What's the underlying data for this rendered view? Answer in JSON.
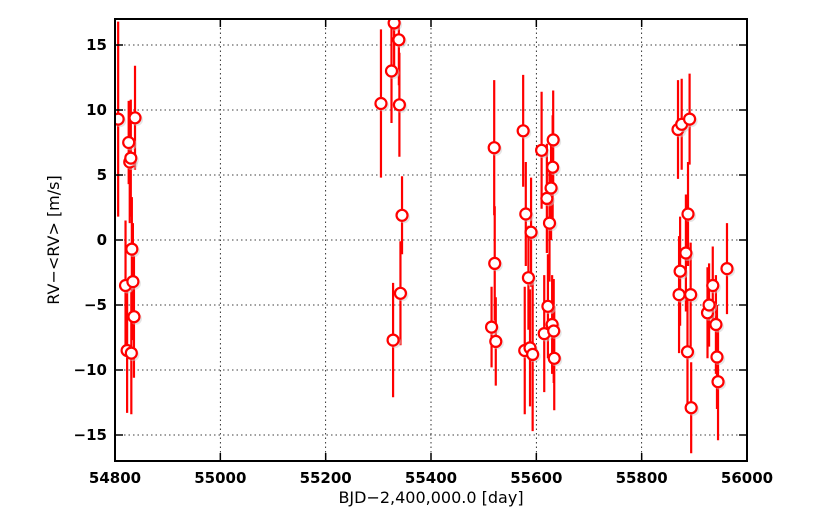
{
  "chart_data": {
    "type": "scatter",
    "xlabel": "BJD−2,400,000.0 [day]",
    "ylabel": "RV−<RV> [m/s]",
    "xlim": [
      54800,
      56000
    ],
    "ylim": [
      -17,
      17
    ],
    "xticks": [
      54800,
      55000,
      55200,
      55400,
      55600,
      55800,
      56000
    ],
    "yticks": [
      15,
      10,
      5,
      0,
      -5,
      -10,
      -15
    ],
    "xtick_labels": [
      "54800",
      "55000",
      "55200",
      "55400",
      "55600",
      "55800",
      "56000"
    ],
    "ytick_labels": [
      "15",
      "10",
      "5",
      "0",
      "−5",
      "−10",
      "−15"
    ],
    "grid": true,
    "marker_color": "#ff0000",
    "marker_face": "#ffffff",
    "series": [
      {
        "points": [
          {
            "x": 54806,
            "y": 9.3,
            "err": 7.5
          },
          {
            "x": 54820,
            "y": -3.5,
            "err": 5.0
          },
          {
            "x": 54823,
            "y": -8.5,
            "err": 4.8
          },
          {
            "x": 54826,
            "y": 7.5,
            "err": 3.2
          },
          {
            "x": 54828,
            "y": 6.0,
            "err": 4.7
          },
          {
            "x": 54830,
            "y": 6.3,
            "err": 4.5
          },
          {
            "x": 54831,
            "y": -8.7,
            "err": 4.7
          },
          {
            "x": 54832,
            "y": -0.7,
            "err": 4.0
          },
          {
            "x": 54834,
            "y": -3.2,
            "err": 4.5
          },
          {
            "x": 54836,
            "y": -5.9,
            "err": 4.7
          },
          {
            "x": 54838,
            "y": 9.4,
            "err": 4.0
          },
          {
            "x": 55305,
            "y": 10.5,
            "err": 5.7
          },
          {
            "x": 55325,
            "y": 13.0,
            "err": 4.0
          },
          {
            "x": 55328,
            "y": -7.7,
            "err": 4.4
          },
          {
            "x": 55330,
            "y": 16.7,
            "err": 3.5
          },
          {
            "x": 55339,
            "y": 15.4,
            "err": 3.5
          },
          {
            "x": 55340,
            "y": 10.4,
            "err": 4.0
          },
          {
            "x": 55342,
            "y": -4.1,
            "err": 4.0
          },
          {
            "x": 55345,
            "y": 1.9,
            "err": 3.0
          },
          {
            "x": 55515,
            "y": -6.7,
            "err": 3.1
          },
          {
            "x": 55520,
            "y": 7.1,
            "err": 5.2
          },
          {
            "x": 55521,
            "y": -1.8,
            "err": 4.4
          },
          {
            "x": 55523,
            "y": -7.8,
            "err": 3.4
          },
          {
            "x": 55575,
            "y": 8.4,
            "err": 4.3
          },
          {
            "x": 55578,
            "y": -8.5,
            "err": 4.9
          },
          {
            "x": 55580,
            "y": 2.0,
            "err": 4.0
          },
          {
            "x": 55585,
            "y": -2.9,
            "err": 4.0
          },
          {
            "x": 55588,
            "y": -8.3,
            "err": 4.5
          },
          {
            "x": 55590,
            "y": 0.6,
            "err": 4.2
          },
          {
            "x": 55593,
            "y": -8.8,
            "err": 5.9
          },
          {
            "x": 55610,
            "y": 6.9,
            "err": 4.5
          },
          {
            "x": 55615,
            "y": -7.2,
            "err": 4.5
          },
          {
            "x": 55620,
            "y": 3.2,
            "err": 4.2
          },
          {
            "x": 55622,
            "y": -5.1,
            "err": 4.0
          },
          {
            "x": 55625,
            "y": 1.3,
            "err": 4.5
          },
          {
            "x": 55628,
            "y": 4.0,
            "err": 4.0
          },
          {
            "x": 55630,
            "y": -6.5,
            "err": 3.8
          },
          {
            "x": 55631,
            "y": 5.6,
            "err": 4.0
          },
          {
            "x": 55632,
            "y": 7.7,
            "err": 3.8
          },
          {
            "x": 55633,
            "y": -7.0,
            "err": 4.0
          },
          {
            "x": 55634,
            "y": -9.1,
            "err": 4.0
          },
          {
            "x": 55869,
            "y": 8.5,
            "err": 3.8
          },
          {
            "x": 55871,
            "y": -4.2,
            "err": 4.5
          },
          {
            "x": 55873,
            "y": -2.4,
            "err": 4.2
          },
          {
            "x": 55876,
            "y": 8.9,
            "err": 3.5
          },
          {
            "x": 55884,
            "y": -1.0,
            "err": 4.5
          },
          {
            "x": 55887,
            "y": -8.6,
            "err": 4.2
          },
          {
            "x": 55888,
            "y": 2.0,
            "err": 4.0
          },
          {
            "x": 55891,
            "y": 9.3,
            "err": 3.5
          },
          {
            "x": 55893,
            "y": -4.2,
            "err": 4.0
          },
          {
            "x": 55894,
            "y": -12.9,
            "err": 3.5
          },
          {
            "x": 55925,
            "y": -5.6,
            "err": 3.5
          },
          {
            "x": 55928,
            "y": -5.0,
            "err": 3.2
          },
          {
            "x": 55935,
            "y": -3.5,
            "err": 3.0
          },
          {
            "x": 55941,
            "y": -6.5,
            "err": 3.8
          },
          {
            "x": 55943,
            "y": -9.0,
            "err": 4.0
          },
          {
            "x": 55945,
            "y": -10.9,
            "err": 4.5
          },
          {
            "x": 55962,
            "y": -2.2,
            "err": 3.5
          }
        ]
      }
    ]
  }
}
